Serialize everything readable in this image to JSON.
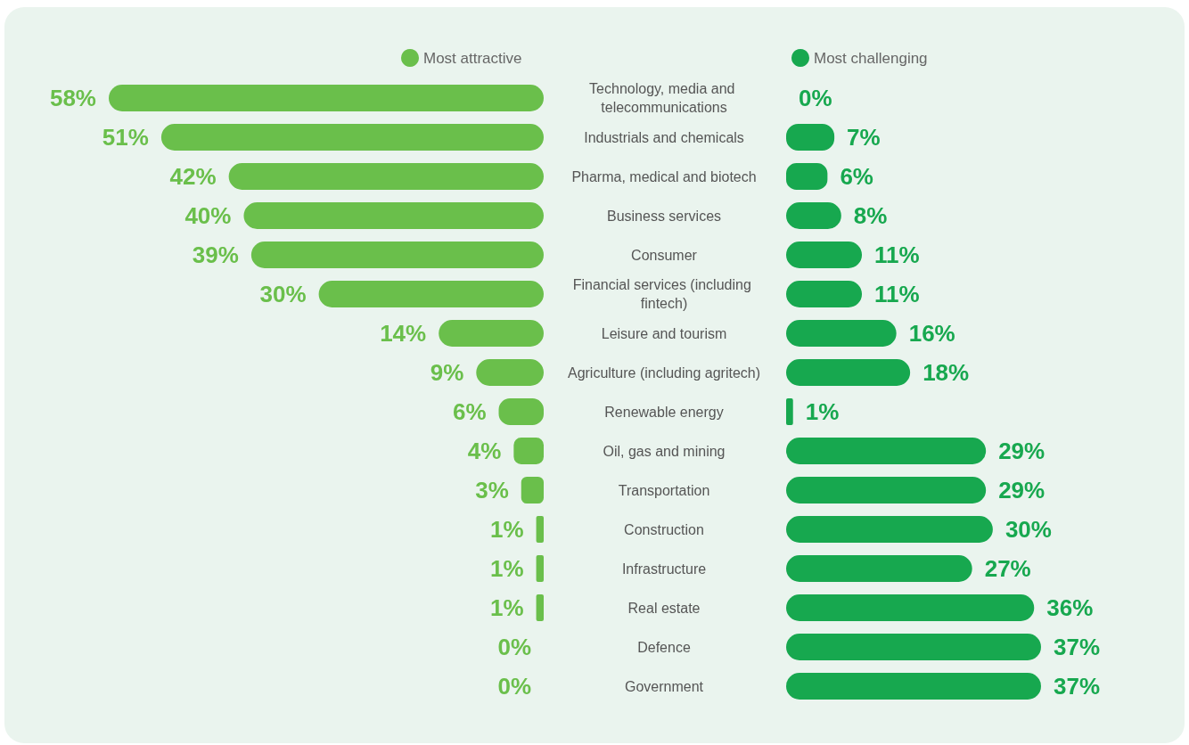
{
  "chart_data": [
    {
      "type": "bar",
      "orientation": "horizontal",
      "legend": "top",
      "tick_labels": false,
      "categories": [
        "Technology, media and telecommunications",
        "Industrials and chemicals",
        "Pharma, medical and biotech",
        "Business services",
        "Consumer",
        "Financial services (including fintech)",
        "Leisure and tourism",
        "Agriculture (including agritech)",
        "Renewable energy",
        "Oil, gas and mining",
        "Transportation",
        "Construction",
        "Infrastructure",
        "Real estate",
        "Defence",
        "Government"
      ],
      "series": [
        {
          "name": "Most attractive",
          "color": "#6abf4b",
          "values": [
            58,
            51,
            42,
            40,
            39,
            30,
            14,
            9,
            6,
            4,
            3,
            1,
            1,
            1,
            0,
            0
          ],
          "value_labels": [
            "58%",
            "51%",
            "42%",
            "40%",
            "39%",
            "30%",
            "14%",
            "9%",
            "6%",
            "4%",
            "3%",
            "1%",
            "1%",
            "1%",
            "0%",
            "0%"
          ]
        }
      ]
    },
    {
      "type": "bar",
      "orientation": "horizontal",
      "legend": "top",
      "categories": [
        "Technology, media and telecommunications",
        "Industrials and chemicals",
        "Pharma, medical and biotech",
        "Business services",
        "Consumer",
        "Financial services (including fintech)",
        "Leisure and tourism",
        "Agriculture (including agritech)",
        "Renewable energy",
        "Oil, gas and mining",
        "Transportation",
        "Construction",
        "Infrastructure",
        "Real estate",
        "Defence",
        "Government"
      ],
      "series": [
        {
          "name": "Most challenging",
          "color": "#17a84f",
          "values": [
            0,
            7,
            6,
            8,
            11,
            11,
            16,
            18,
            1,
            29,
            29,
            30,
            27,
            36,
            37,
            37
          ],
          "value_labels": [
            "0%",
            "7%",
            "6%",
            "8%",
            "11%",
            "11%",
            "16%",
            "18%",
            "1%",
            "29%",
            "29%",
            "30%",
            "27%",
            "36%",
            "37%",
            "37%"
          ]
        }
      ]
    }
  ]
}
